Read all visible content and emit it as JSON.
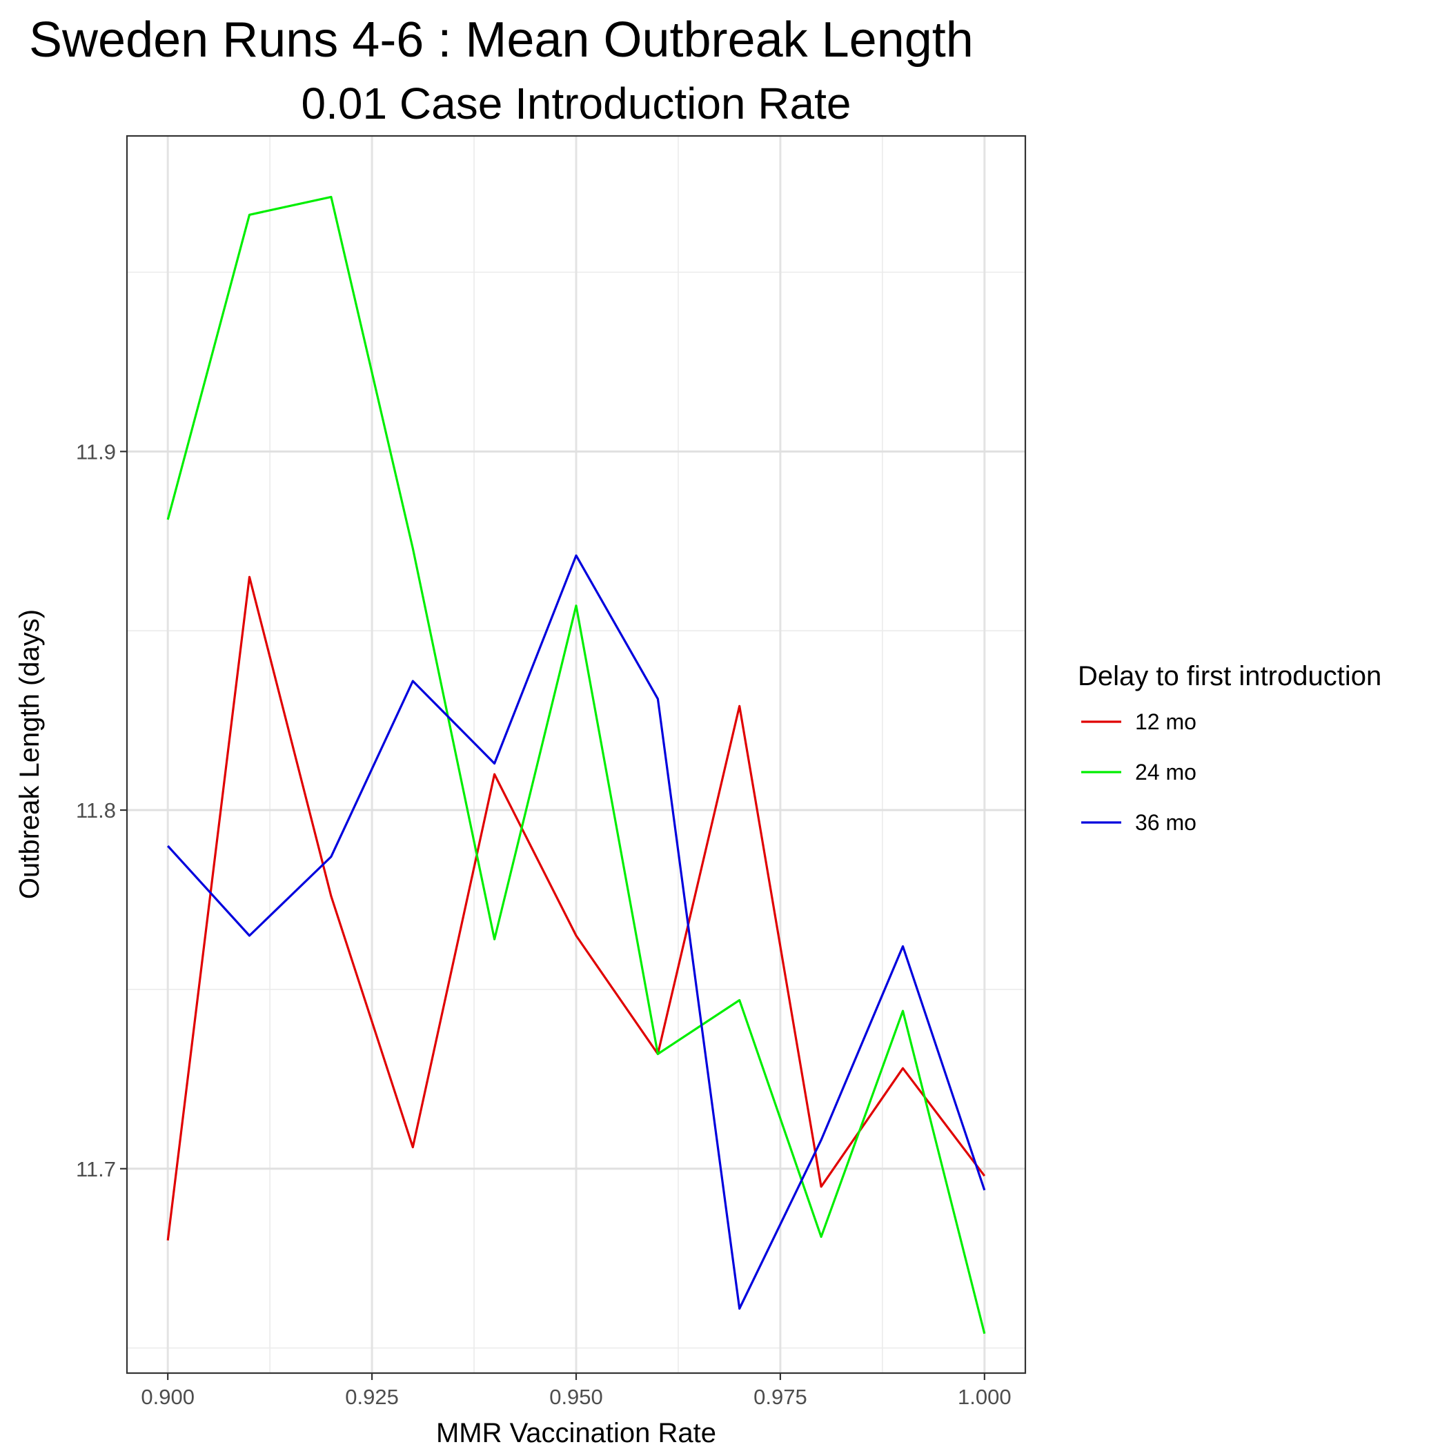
{
  "chart_data": {
    "type": "line",
    "title": "Sweden Runs 4-6 : Mean Outbreak Length",
    "subtitle": "0.01 Case Introduction Rate",
    "xlabel": "MMR Vaccination Rate",
    "ylabel": "Outbreak Length (days)",
    "xlim": [
      0.895,
      1.005
    ],
    "ylim": [
      11.643,
      11.988
    ],
    "x_ticks": [
      0.9,
      0.925,
      0.95,
      0.975,
      1.0
    ],
    "x_tick_labels": [
      "0.900",
      "0.925",
      "0.950",
      "0.975",
      "1.000"
    ],
    "y_ticks": [
      11.7,
      11.8,
      11.9
    ],
    "y_tick_labels": [
      "11.7",
      "11.8",
      "11.9"
    ],
    "grid": true,
    "legend": {
      "title": "Delay to first introduction",
      "position": "right"
    },
    "x": [
      0.9,
      0.91,
      0.92,
      0.93,
      0.94,
      0.95,
      0.96,
      0.97,
      0.98,
      0.99,
      1.0
    ],
    "series": [
      {
        "name": "12 mo",
        "color": "#e00000",
        "values": [
          11.68,
          11.865,
          11.776,
          11.706,
          11.81,
          11.765,
          11.732,
          11.829,
          11.695,
          11.728,
          11.698
        ]
      },
      {
        "name": "24 mo",
        "color": "#00ee00",
        "values": [
          11.881,
          11.966,
          11.971,
          11.873,
          11.764,
          11.857,
          11.732,
          11.747,
          11.681,
          11.744,
          11.654
        ]
      },
      {
        "name": "36 mo",
        "color": "#0000dd",
        "values": [
          11.79,
          11.765,
          11.787,
          11.836,
          11.813,
          11.871,
          11.831,
          11.661,
          11.708,
          11.762,
          11.694
        ]
      }
    ]
  }
}
